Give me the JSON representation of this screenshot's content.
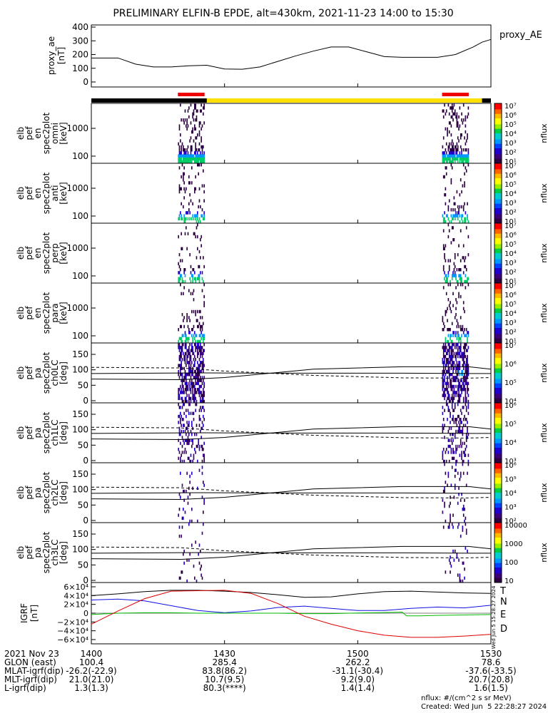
{
  "title": "PRELIMINARY ELFIN-B EPDE, alt=430km, 2021-11-23 14:00 to 15:30",
  "chart_data": [
    {
      "type": "line",
      "ylabel": [
        "proxy_ae",
        "[nT]"
      ],
      "yticks": [
        "400",
        "300",
        "200",
        "100",
        "0"
      ],
      "ylim": [
        0,
        400
      ],
      "legend": "proxy_AE",
      "xlim": [
        0,
        90
      ],
      "series": [
        {
          "name": "proxy_AE",
          "x": [
            0,
            6,
            10,
            14,
            18,
            22,
            26,
            30,
            34,
            38,
            42,
            46,
            50,
            54,
            58,
            62,
            66,
            70,
            74,
            78,
            82,
            86,
            88,
            90
          ],
          "y": [
            175,
            175,
            130,
            110,
            110,
            118,
            122,
            95,
            93,
            110,
            150,
            190,
            225,
            255,
            255,
            220,
            185,
            180,
            180,
            180,
            200,
            255,
            290,
            310
          ]
        }
      ]
    },
    {
      "type": "heatmap",
      "name": "omni",
      "ylabel": [
        "elb",
        "pef",
        "en",
        "spec2plot",
        "omni",
        "[keV]"
      ],
      "yticks": [
        "1000",
        "100"
      ],
      "colorbar_ticks": [
        "10⁷",
        "10⁶",
        "10⁵",
        "10⁴",
        "10³",
        "10²",
        "10¹"
      ],
      "colorbar_label": "nflux"
    },
    {
      "type": "heatmap",
      "name": "anti",
      "ylabel": [
        "elb",
        "pef",
        "en",
        "spec2plot",
        "anti",
        "[keV]"
      ],
      "yticks": [
        "1000",
        "100"
      ],
      "colorbar_ticks": [
        "10⁷",
        "10⁶",
        "10⁵",
        "10⁴",
        "10³",
        "10²",
        "10¹"
      ],
      "colorbar_label": "nflux"
    },
    {
      "type": "heatmap",
      "name": "perp",
      "ylabel": [
        "elb",
        "pef",
        "en",
        "spec2plot",
        "perp",
        "[keV]"
      ],
      "yticks": [
        "1000",
        "100"
      ],
      "colorbar_ticks": [
        "10⁷",
        "10⁶",
        "10⁵",
        "10⁴",
        "10³",
        "10²",
        "10¹"
      ],
      "colorbar_label": "nflux"
    },
    {
      "type": "heatmap",
      "name": "para",
      "ylabel": [
        "elb",
        "pef",
        "en",
        "spec2plot",
        "para",
        "[keV]"
      ],
      "yticks": [
        "1000",
        "100"
      ],
      "colorbar_ticks": [
        "10⁷",
        "10⁶",
        "10⁵",
        "10⁴",
        "10³",
        "10²",
        "10¹"
      ],
      "colorbar_label": "nflux"
    },
    {
      "type": "heatmap",
      "name": "ch0LC",
      "ylabel": [
        "elb",
        "pef",
        "pa",
        "spec2plot",
        "ch0LC",
        "[deg]"
      ],
      "yticks": [
        "150",
        "100",
        "50",
        "0"
      ],
      "colorbar_ticks": [
        "10⁷",
        "10⁶",
        "10⁵",
        "10⁴"
      ],
      "colorbar_label": "nflux"
    },
    {
      "type": "heatmap",
      "name": "ch1LC",
      "ylabel": [
        "elb",
        "pef",
        "pa",
        "spec2plot",
        "ch1LC",
        "[deg]"
      ],
      "yticks": [
        "150",
        "100",
        "50",
        "0"
      ],
      "colorbar_ticks": [
        "10⁶",
        "10⁵",
        "10⁴",
        "10³"
      ],
      "colorbar_label": "nflux"
    },
    {
      "type": "heatmap",
      "name": "ch2LC",
      "ylabel": [
        "elb",
        "pef",
        "pa",
        "spec2plot",
        "ch2LC",
        "[deg]"
      ],
      "yticks": [
        "150",
        "100",
        "50",
        "0"
      ],
      "colorbar_ticks": [
        "10⁶",
        "10⁵",
        "10⁴",
        "10³",
        "10²"
      ],
      "colorbar_label": "nflux"
    },
    {
      "type": "heatmap",
      "name": "ch3LC",
      "ylabel": [
        "elb",
        "pef",
        "pa",
        "spec2plot",
        "ch3LC",
        "[deg]"
      ],
      "yticks": [
        "150",
        "100",
        "50",
        "0"
      ],
      "colorbar_ticks": [
        "10000",
        "1000",
        "100",
        "10"
      ],
      "colorbar_label": "nflux"
    },
    {
      "type": "line",
      "ylabel": [
        "IGRF",
        "[nT]"
      ],
      "yticks": [
        "6×10⁴",
        "4×10⁴",
        "2×10⁴",
        "0",
        "−2×10⁴",
        "−4×10⁴",
        "−6×10⁴"
      ],
      "ylim": [
        -60000,
        60000
      ],
      "legend": [
        "T",
        "N",
        "E",
        "D"
      ],
      "xlim": [
        0,
        90
      ],
      "series": [
        {
          "name": "T",
          "x": [
            0,
            6,
            12,
            18,
            24,
            30,
            36,
            42,
            48,
            54,
            60,
            66,
            72,
            78,
            84,
            90
          ],
          "y": [
            40000,
            44000,
            49000,
            52000,
            52000,
            50000,
            47000,
            42000,
            36000,
            37000,
            44000,
            49000,
            50000,
            48000,
            46000,
            45000
          ]
        },
        {
          "name": "N",
          "x": [
            0,
            6,
            12,
            18,
            24,
            30,
            36,
            42,
            48,
            54,
            60,
            66,
            72,
            78,
            84,
            90
          ],
          "y": [
            30000,
            32000,
            28000,
            17000,
            6000,
            1000,
            5000,
            13000,
            16000,
            11000,
            6000,
            6000,
            11000,
            14000,
            12000,
            18000
          ]
        },
        {
          "name": "E",
          "x": [
            0,
            6,
            12,
            18,
            24,
            30,
            36,
            42,
            48,
            54,
            60,
            66,
            70,
            71,
            74,
            78,
            84,
            90
          ],
          "y": [
            -3000,
            0,
            1000,
            1000,
            0,
            0,
            0,
            0,
            -1000,
            -1000,
            500,
            1500,
            2500,
            -6000,
            -6000,
            -5000,
            -4000,
            -3000
          ]
        },
        {
          "name": "D",
          "x": [
            0,
            6,
            12,
            18,
            24,
            30,
            36,
            42,
            48,
            54,
            60,
            66,
            72,
            78,
            84,
            90
          ],
          "y": [
            -25000,
            5000,
            33000,
            50000,
            51000,
            52000,
            45000,
            22000,
            -7000,
            -25000,
            -40000,
            -50000,
            -55000,
            -55000,
            -52000,
            -48000
          ]
        }
      ]
    }
  ],
  "xaxis": {
    "rows": [
      {
        "label": "2021 Nov 23",
        "values": [
          "1400",
          "1430",
          "1500",
          "1530"
        ]
      },
      {
        "label": "GLON (east)",
        "values": [
          "100.4",
          "285.4",
          "262.2",
          "78.6"
        ]
      },
      {
        "label": "MLAT-igrf(dip)",
        "values": [
          "-26.2(-22.9)",
          "83.8(86.2)",
          "-31.1(-30.4)",
          "-37.6(-33.5)"
        ]
      },
      {
        "label": "MLT-igrf(dip)",
        "values": [
          "21.0(21.0)",
          "10.7(9.5)",
          "9.2(9.0)",
          "20.7(20.8)"
        ]
      },
      {
        "label": "L-igrf(dip)",
        "values": [
          "1.3(1.3)",
          "80.3(****)",
          "1.4(1.4)",
          "1.6(1.5)"
        ]
      }
    ]
  },
  "footnote": {
    "units": "nflux: #/(cm^2 s sr MeV)",
    "created": "Created: Wed Jun  5 22:28:27 2024"
  },
  "side_stamp": "Wed Jun  5 15:28:27 2024",
  "colors": {
    "T": "#000000",
    "N": "#1010e0",
    "E": "#00bb00",
    "D": "#dd0000",
    "orbit_yellow": "#ffe000",
    "orbit_red": "#ee0000"
  }
}
